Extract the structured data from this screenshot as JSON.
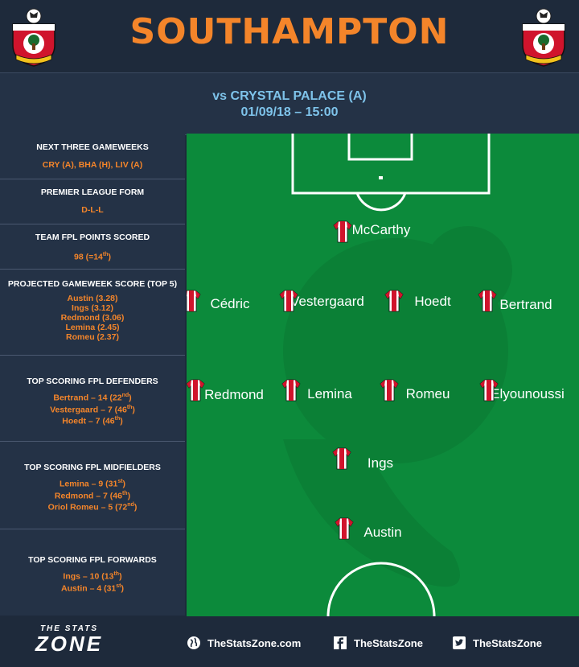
{
  "header": {
    "team": "SOUTHAMPTON",
    "crest_name": "SOUTHAMPTON F.C."
  },
  "fixture": {
    "opponent": "vs CRYSTAL PALACE (A)",
    "datetime": "01/09/18 – 15:00"
  },
  "panels": [
    {
      "title": "NEXT THREE GAMEWEEKS",
      "lines": [
        {
          "text": "CRY (A), BHA (H), LIV (A)",
          "sup": ""
        }
      ]
    },
    {
      "title": "PREMIER LEAGUE FORM",
      "lines": [
        {
          "text": "D-L-L",
          "sup": ""
        }
      ]
    },
    {
      "title": "TEAM FPL POINTS SCORED",
      "lines": [
        {
          "text": "98 (=14",
          "sup": "th",
          "after": ")"
        }
      ]
    },
    {
      "title": "PROJECTED GAMEWEEK SCORE (TOP 5)",
      "lines": [
        {
          "text": "Austin (3.28)",
          "sup": ""
        },
        {
          "text": "Ings (3.12)",
          "sup": ""
        },
        {
          "text": "Redmond (3.06)",
          "sup": ""
        },
        {
          "text": "Lemina (2.45)",
          "sup": ""
        },
        {
          "text": "Romeu (2.37)",
          "sup": ""
        }
      ]
    },
    {
      "title": "TOP SCORING FPL DEFENDERS",
      "lines": [
        {
          "text": "Bertrand – 14 (22",
          "sup": "nd",
          "after": ")"
        },
        {
          "text": "Vestergaard – 7 (46",
          "sup": "th",
          "after": ")"
        },
        {
          "text": "Hoedt – 7 (46",
          "sup": "th",
          "after": ")"
        }
      ]
    },
    {
      "title": "TOP SCORING FPL MIDFIELDERS",
      "lines": [
        {
          "text": "Lemina – 9 (31",
          "sup": "st",
          "after": ")"
        },
        {
          "text": "Redmond – 7 (46",
          "sup": "th",
          "after": ")"
        },
        {
          "text": "Oriol Romeu – 5 (72",
          "sup": "nd",
          "after": ")"
        }
      ]
    },
    {
      "title": "TOP SCORING FPL FORWARDS",
      "lines": [
        {
          "text": "Ings – 10 (13",
          "sup": "th",
          "after": ")"
        },
        {
          "text": "Austin – 4 (31",
          "sup": "st",
          "after": ")"
        }
      ]
    }
  ],
  "lineup": {
    "goalkeeper": [
      "McCarthy"
    ],
    "defenders": [
      "Cédric",
      "Vestergaard",
      "Hoedt",
      "Bertrand"
    ],
    "midfielders": [
      "Redmond",
      "Lemina",
      "Romeu",
      "Elyounoussi"
    ],
    "attacking_mid": [
      "Ings"
    ],
    "forward": [
      "Austin"
    ]
  },
  "footer": {
    "logo_top": "THE STATS",
    "logo_bottom": "ZONE",
    "website": "TheStatsZone.com",
    "facebook": "TheStatsZone",
    "twitter": "TheStatsZone"
  },
  "colors": {
    "accent": "#f4852a",
    "fixture": "#7ec3ea",
    "background": "#1e2a3b",
    "pitch": "#0c8a3b",
    "shirt_red": "#d0142c"
  }
}
